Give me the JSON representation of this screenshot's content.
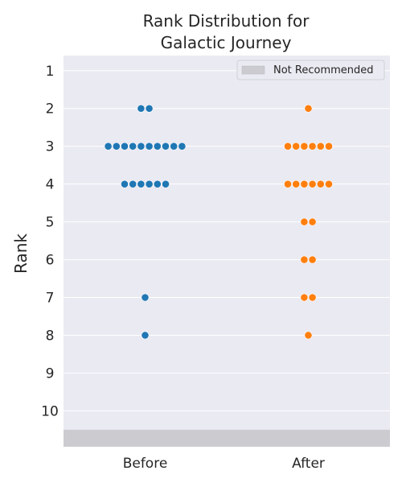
{
  "chart_data": {
    "type": "swarm",
    "title_lines": [
      "Rank Distribution for",
      "Galactic Journey"
    ],
    "xlabel": "",
    "ylabel": "Rank",
    "categories": [
      "Before",
      "After"
    ],
    "y_ticks": [
      "1",
      "2",
      "3",
      "4",
      "5",
      "6",
      "7",
      "8",
      "9",
      "10"
    ],
    "ylim": [
      0.6,
      10.95
    ],
    "y_inverted": true,
    "grid": true,
    "legend": {
      "position": "top-right",
      "label": "Not Recommended"
    },
    "shaded_region": {
      "from": 10.5,
      "to": 10.95,
      "color": "#cccbd0"
    },
    "series": [
      {
        "category": "Before",
        "color": "#1f77b4",
        "counts": {
          "2": 2,
          "3": 10,
          "4": 6,
          "7": 1,
          "8": 1
        }
      },
      {
        "category": "After",
        "color": "#ff7f0e",
        "counts": {
          "2": 1,
          "3": 6,
          "4": 6,
          "5": 2,
          "6": 2,
          "7": 2,
          "8": 1
        }
      }
    ]
  }
}
